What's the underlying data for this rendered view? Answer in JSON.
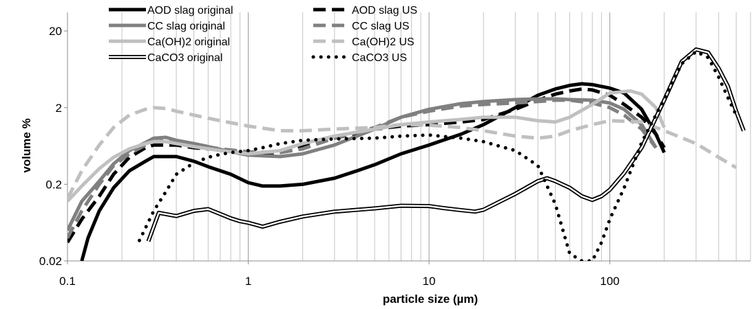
{
  "chart_data": {
    "type": "line",
    "title": "",
    "xlabel": "particle size (µm)",
    "ylabel": "volume %",
    "x_scale": "log",
    "y_scale": "log",
    "xlim": [
      0.1,
      600
    ],
    "ylim": [
      0.02,
      35
    ],
    "grid": "vertical minor+major on x",
    "legend_position": "top, two columns",
    "x_ticks": [
      {
        "value": 0.1,
        "label": "0.1"
      },
      {
        "value": 1,
        "label": "1"
      },
      {
        "value": 10,
        "label": "10"
      },
      {
        "value": 100,
        "label": "100"
      }
    ],
    "y_ticks": [
      {
        "value": 0.02,
        "label": "0.02"
      },
      {
        "value": 0.2,
        "label": "0.2"
      },
      {
        "value": 2,
        "label": "2"
      },
      {
        "value": 20,
        "label": "20"
      }
    ],
    "series": [
      {
        "name": "AOD slag original",
        "color": "#000000",
        "style": "solid",
        "points": [
          [
            0.12,
            0.02
          ],
          [
            0.13,
            0.04
          ],
          [
            0.15,
            0.09
          ],
          [
            0.18,
            0.18
          ],
          [
            0.22,
            0.3
          ],
          [
            0.27,
            0.4
          ],
          [
            0.3,
            0.46
          ],
          [
            0.4,
            0.46
          ],
          [
            0.5,
            0.4
          ],
          [
            0.6,
            0.34
          ],
          [
            0.8,
            0.27
          ],
          [
            1,
            0.21
          ],
          [
            1.2,
            0.19
          ],
          [
            1.5,
            0.19
          ],
          [
            2,
            0.2
          ],
          [
            3,
            0.24
          ],
          [
            4,
            0.3
          ],
          [
            5,
            0.36
          ],
          [
            7,
            0.5
          ],
          [
            10,
            0.65
          ],
          [
            15,
            0.9
          ],
          [
            20,
            1.2
          ],
          [
            30,
            2
          ],
          [
            40,
            2.9
          ],
          [
            50,
            3.5
          ],
          [
            60,
            3.9
          ],
          [
            70,
            4.1
          ],
          [
            80,
            4.0
          ],
          [
            100,
            3.6
          ],
          [
            120,
            3.1
          ],
          [
            150,
            1.9
          ],
          [
            180,
            0.9
          ],
          [
            200,
            0.52
          ]
        ]
      },
      {
        "name": "AOD slag US",
        "color": "#000000",
        "style": "dashed",
        "points": [
          [
            0.1,
            0.035
          ],
          [
            0.12,
            0.07
          ],
          [
            0.15,
            0.14
          ],
          [
            0.18,
            0.27
          ],
          [
            0.22,
            0.45
          ],
          [
            0.27,
            0.6
          ],
          [
            0.3,
            0.65
          ],
          [
            0.4,
            0.65
          ],
          [
            0.5,
            0.6
          ],
          [
            0.6,
            0.58
          ],
          [
            0.8,
            0.55
          ],
          [
            1,
            0.48
          ],
          [
            1.5,
            0.52
          ],
          [
            2,
            0.62
          ],
          [
            3,
            0.8
          ],
          [
            5,
            1.05
          ],
          [
            7,
            1.15
          ],
          [
            10,
            1.2
          ],
          [
            15,
            1.3
          ],
          [
            20,
            1.4
          ],
          [
            30,
            1.9
          ],
          [
            40,
            2.5
          ],
          [
            50,
            3.0
          ],
          [
            60,
            3.3
          ],
          [
            70,
            3.5
          ],
          [
            80,
            3.4
          ],
          [
            100,
            2.9
          ],
          [
            120,
            2.2
          ],
          [
            150,
            1.5
          ],
          [
            180,
            0.9
          ],
          [
            200,
            0.6
          ]
        ]
      },
      {
        "name": "CC slag original",
        "color": "#808080",
        "style": "solid",
        "points": [
          [
            0.1,
            0.05
          ],
          [
            0.12,
            0.12
          ],
          [
            0.15,
            0.22
          ],
          [
            0.18,
            0.37
          ],
          [
            0.22,
            0.55
          ],
          [
            0.27,
            0.7
          ],
          [
            0.3,
            0.8
          ],
          [
            0.35,
            0.82
          ],
          [
            0.4,
            0.75
          ],
          [
            0.5,
            0.68
          ],
          [
            0.6,
            0.62
          ],
          [
            0.8,
            0.53
          ],
          [
            1,
            0.48
          ],
          [
            1.5,
            0.46
          ],
          [
            2,
            0.5
          ],
          [
            3,
            0.65
          ],
          [
            5,
            1.05
          ],
          [
            7,
            1.5
          ],
          [
            10,
            1.9
          ],
          [
            15,
            2.25
          ],
          [
            20,
            2.4
          ],
          [
            30,
            2.55
          ],
          [
            40,
            2.6
          ],
          [
            50,
            2.6
          ],
          [
            60,
            2.55
          ],
          [
            80,
            2.5
          ],
          [
            100,
            2.3
          ],
          [
            120,
            1.9
          ],
          [
            150,
            1.2
          ],
          [
            180,
            0.6
          ]
        ]
      },
      {
        "name": "CC slag US",
        "color": "#808080",
        "style": "dashed",
        "points": [
          [
            0.1,
            0.04
          ],
          [
            0.12,
            0.09
          ],
          [
            0.15,
            0.2
          ],
          [
            0.18,
            0.35
          ],
          [
            0.22,
            0.5
          ],
          [
            0.27,
            0.65
          ],
          [
            0.3,
            0.72
          ],
          [
            0.35,
            0.74
          ],
          [
            0.4,
            0.72
          ],
          [
            0.5,
            0.66
          ],
          [
            0.7,
            0.58
          ],
          [
            1,
            0.53
          ],
          [
            1.5,
            0.52
          ],
          [
            2,
            0.58
          ],
          [
            3,
            0.8
          ],
          [
            5,
            1.1
          ],
          [
            7,
            1.5
          ],
          [
            10,
            1.8
          ],
          [
            15,
            2.1
          ],
          [
            20,
            2.2
          ],
          [
            30,
            2.3
          ],
          [
            40,
            2.4
          ],
          [
            50,
            2.5
          ],
          [
            60,
            2.5
          ],
          [
            80,
            2.3
          ],
          [
            100,
            2.0
          ],
          [
            120,
            1.6
          ],
          [
            150,
            1.05
          ],
          [
            180,
            0.6
          ]
        ]
      },
      {
        "name": "Ca(OH)2 original",
        "color": "#c0c0c0",
        "style": "solid",
        "points": [
          [
            0.1,
            0.12
          ],
          [
            0.12,
            0.19
          ],
          [
            0.15,
            0.32
          ],
          [
            0.18,
            0.45
          ],
          [
            0.22,
            0.58
          ],
          [
            0.27,
            0.68
          ],
          [
            0.3,
            0.72
          ],
          [
            0.35,
            0.72
          ],
          [
            0.4,
            0.68
          ],
          [
            0.5,
            0.62
          ],
          [
            0.7,
            0.55
          ],
          [
            1,
            0.5
          ],
          [
            1.5,
            0.55
          ],
          [
            2,
            0.68
          ],
          [
            3,
            0.85
          ],
          [
            5,
            1.05
          ],
          [
            7,
            1.2
          ],
          [
            10,
            1.3
          ],
          [
            15,
            1.4
          ],
          [
            20,
            1.5
          ],
          [
            30,
            1.5
          ],
          [
            40,
            1.35
          ],
          [
            50,
            1.3
          ],
          [
            60,
            1.5
          ],
          [
            80,
            2.2
          ],
          [
            100,
            3.1
          ],
          [
            130,
            3.3
          ],
          [
            150,
            3.0
          ],
          [
            180,
            2.0
          ],
          [
            200,
            1.1
          ]
        ]
      },
      {
        "name": "Ca(OH)2 US",
        "color": "#c0c0c0",
        "style": "dashed",
        "points": [
          [
            0.1,
            0.13
          ],
          [
            0.12,
            0.3
          ],
          [
            0.15,
            0.65
          ],
          [
            0.18,
            1.1
          ],
          [
            0.22,
            1.6
          ],
          [
            0.27,
            1.9
          ],
          [
            0.3,
            2.0
          ],
          [
            0.35,
            1.95
          ],
          [
            0.4,
            1.8
          ],
          [
            0.5,
            1.6
          ],
          [
            0.7,
            1.35
          ],
          [
            1,
            1.15
          ],
          [
            1.5,
            1.0
          ],
          [
            2,
            1.0
          ],
          [
            3,
            1.05
          ],
          [
            5,
            1.1
          ],
          [
            7,
            1.2
          ],
          [
            10,
            1.18
          ],
          [
            15,
            1.1
          ],
          [
            20,
            1.0
          ],
          [
            30,
            0.85
          ],
          [
            40,
            0.8
          ],
          [
            50,
            0.85
          ],
          [
            60,
            1.0
          ],
          [
            80,
            1.2
          ],
          [
            100,
            1.35
          ],
          [
            150,
            1.3
          ],
          [
            200,
            1.0
          ],
          [
            300,
            0.68
          ],
          [
            400,
            0.45
          ],
          [
            500,
            0.33
          ]
        ]
      },
      {
        "name": "CaCO3 original",
        "color": "#000000",
        "style": "double",
        "points": [
          [
            0.28,
            0.036
          ],
          [
            0.32,
            0.085
          ],
          [
            0.4,
            0.077
          ],
          [
            0.5,
            0.09
          ],
          [
            0.6,
            0.095
          ],
          [
            0.7,
            0.082
          ],
          [
            0.8,
            0.072
          ],
          [
            0.9,
            0.066
          ],
          [
            1,
            0.063
          ],
          [
            1.2,
            0.056
          ],
          [
            1.5,
            0.065
          ],
          [
            2,
            0.076
          ],
          [
            3,
            0.088
          ],
          [
            5,
            0.097
          ],
          [
            7,
            0.105
          ],
          [
            10,
            0.104
          ],
          [
            12,
            0.098
          ],
          [
            15,
            0.092
          ],
          [
            18,
            0.088
          ],
          [
            20,
            0.093
          ],
          [
            30,
            0.15
          ],
          [
            40,
            0.22
          ],
          [
            45,
            0.24
          ],
          [
            50,
            0.22
          ],
          [
            60,
            0.18
          ],
          [
            70,
            0.14
          ],
          [
            80,
            0.125
          ],
          [
            90,
            0.14
          ],
          [
            100,
            0.17
          ],
          [
            120,
            0.28
          ],
          [
            150,
            0.6
          ],
          [
            200,
            2.5
          ],
          [
            250,
            8
          ],
          [
            300,
            11.5
          ],
          [
            350,
            10.5
          ],
          [
            400,
            6.5
          ],
          [
            450,
            3.8
          ],
          [
            500,
            1.8
          ],
          [
            550,
            1.0
          ]
        ]
      },
      {
        "name": "CaCO3 US",
        "color": "#000000",
        "style": "dotted",
        "points": [
          [
            0.25,
            0.037
          ],
          [
            0.3,
            0.09
          ],
          [
            0.35,
            0.16
          ],
          [
            0.4,
            0.27
          ],
          [
            0.5,
            0.38
          ],
          [
            0.6,
            0.45
          ],
          [
            0.7,
            0.49
          ],
          [
            0.8,
            0.52
          ],
          [
            1,
            0.55
          ],
          [
            1.2,
            0.6
          ],
          [
            1.5,
            0.68
          ],
          [
            2,
            0.75
          ],
          [
            3,
            0.78
          ],
          [
            5,
            0.8
          ],
          [
            7,
            0.85
          ],
          [
            10,
            0.88
          ],
          [
            15,
            0.8
          ],
          [
            20,
            0.72
          ],
          [
            30,
            0.55
          ],
          [
            40,
            0.35
          ],
          [
            50,
            0.11
          ],
          [
            60,
            0.025
          ],
          [
            70,
            0.02
          ],
          [
            80,
            0.02
          ],
          [
            90,
            0.035
          ],
          [
            100,
            0.07
          ],
          [
            120,
            0.18
          ],
          [
            150,
            0.7
          ],
          [
            200,
            2.6
          ],
          [
            250,
            7.5
          ],
          [
            300,
            10.8
          ],
          [
            350,
            9.0
          ],
          [
            400,
            5.0
          ],
          [
            450,
            2.7
          ],
          [
            500,
            1.6
          ]
        ]
      }
    ]
  }
}
